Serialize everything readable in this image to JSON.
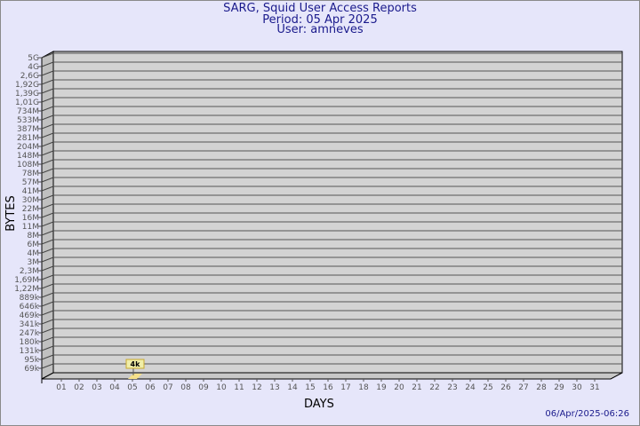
{
  "header": {
    "title": "SARG, Squid User Access Reports",
    "period": "Period: 05 Apr 2025",
    "user": "User: amneves"
  },
  "footer": {
    "timestamp": "06/Apr/2025-06:26"
  },
  "colors": {
    "background": "#e6e6fa",
    "plot": "#d3d3d3",
    "bar": "#f5e08a",
    "title": "#1a1a8c"
  },
  "chart_data": {
    "type": "bar",
    "xlabel": "DAYS",
    "ylabel": "BYTES",
    "y_scale": "log",
    "grid": true,
    "y_tick_labels": [
      "5G",
      "4G",
      "2,6G",
      "1,92G",
      "1,39G",
      "1,01G",
      "734M",
      "533M",
      "387M",
      "281M",
      "204M",
      "148M",
      "108M",
      "78M",
      "57M",
      "41M",
      "30M",
      "22M",
      "16M",
      "11M",
      "8M",
      "6M",
      "4M",
      "3M",
      "2,3M",
      "1,69M",
      "1,22M",
      "889k",
      "646k",
      "469k",
      "341k",
      "247k",
      "180k",
      "131k",
      "95k",
      "69k"
    ],
    "categories": [
      "01",
      "02",
      "03",
      "04",
      "05",
      "06",
      "07",
      "08",
      "09",
      "10",
      "11",
      "12",
      "13",
      "14",
      "15",
      "16",
      "17",
      "18",
      "19",
      "20",
      "21",
      "22",
      "23",
      "24",
      "25",
      "26",
      "27",
      "28",
      "29",
      "30",
      "31"
    ],
    "values": [
      null,
      null,
      null,
      null,
      4000,
      null,
      null,
      null,
      null,
      null,
      null,
      null,
      null,
      null,
      null,
      null,
      null,
      null,
      null,
      null,
      null,
      null,
      null,
      null,
      null,
      null,
      null,
      null,
      null,
      null,
      null
    ],
    "data_labels": {
      "05": "4k"
    }
  }
}
